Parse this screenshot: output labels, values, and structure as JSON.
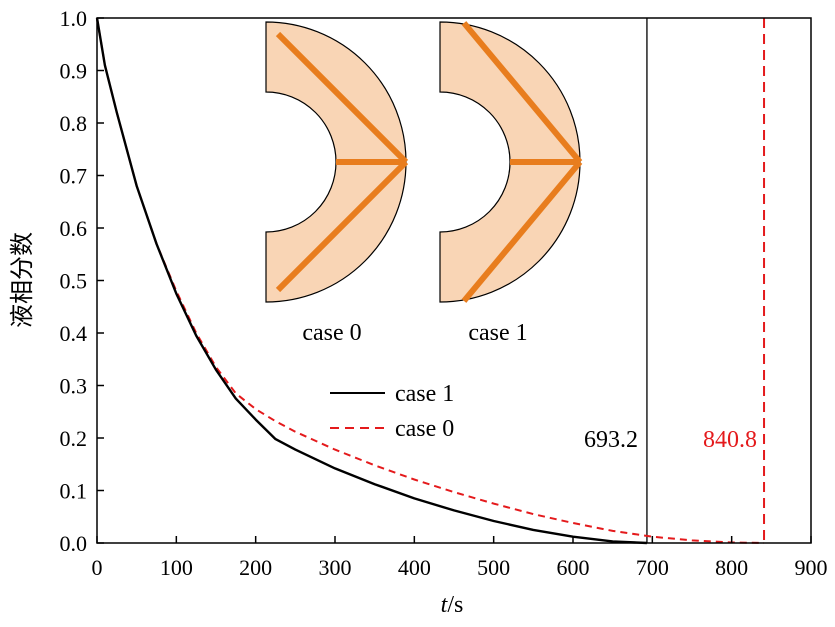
{
  "chart_data": {
    "type": "line",
    "title": "",
    "xlabel_italic": "t",
    "xlabel_rest": "/s",
    "ylabel": "液相分数",
    "xlim": [
      0,
      900
    ],
    "ylim": [
      0,
      1.0
    ],
    "xticks": [
      "0",
      "100",
      "200",
      "300",
      "400",
      "500",
      "600",
      "700",
      "800",
      "900"
    ],
    "yticks": [
      "0.0",
      "0.1",
      "0.2",
      "0.3",
      "0.4",
      "0.5",
      "0.6",
      "0.7",
      "0.8",
      "0.9",
      "1.0"
    ],
    "grid": false,
    "legend_position": "center",
    "series": [
      {
        "name": "case 1",
        "color": "#000000",
        "style": "solid",
        "x": [
          0,
          10,
          25,
          50,
          75,
          100,
          125,
          150,
          175,
          200,
          225,
          250,
          300,
          350,
          400,
          450,
          500,
          550,
          600,
          650,
          693.2
        ],
        "y": [
          1.0,
          0.91,
          0.82,
          0.68,
          0.57,
          0.475,
          0.395,
          0.33,
          0.275,
          0.235,
          0.198,
          0.178,
          0.142,
          0.112,
          0.085,
          0.062,
          0.042,
          0.025,
          0.012,
          0.003,
          0.0
        ]
      },
      {
        "name": "case 0",
        "color": "#e41a1c",
        "style": "dashed",
        "x": [
          0,
          10,
          25,
          50,
          75,
          100,
          125,
          150,
          175,
          200,
          225,
          250,
          300,
          350,
          400,
          450,
          500,
          550,
          600,
          650,
          700,
          750,
          800,
          840.8
        ],
        "y": [
          1.0,
          0.91,
          0.82,
          0.68,
          0.57,
          0.48,
          0.4,
          0.335,
          0.285,
          0.255,
          0.232,
          0.212,
          0.178,
          0.148,
          0.121,
          0.097,
          0.075,
          0.055,
          0.038,
          0.023,
          0.012,
          0.005,
          0.001,
          0.0
        ]
      }
    ],
    "vlines": [
      {
        "x": 693.2,
        "label": "693.2",
        "color": "#000000",
        "style": "solid"
      },
      {
        "x": 840.8,
        "label": "840.8",
        "color": "#e41a1c",
        "style": "dashed"
      }
    ],
    "insets": [
      {
        "label": "case 0",
        "fill": "#f9d5b5",
        "rib_color": "#e87d1e"
      },
      {
        "label": "case 1",
        "fill": "#f9d5b5",
        "rib_color": "#e87d1e"
      }
    ]
  }
}
